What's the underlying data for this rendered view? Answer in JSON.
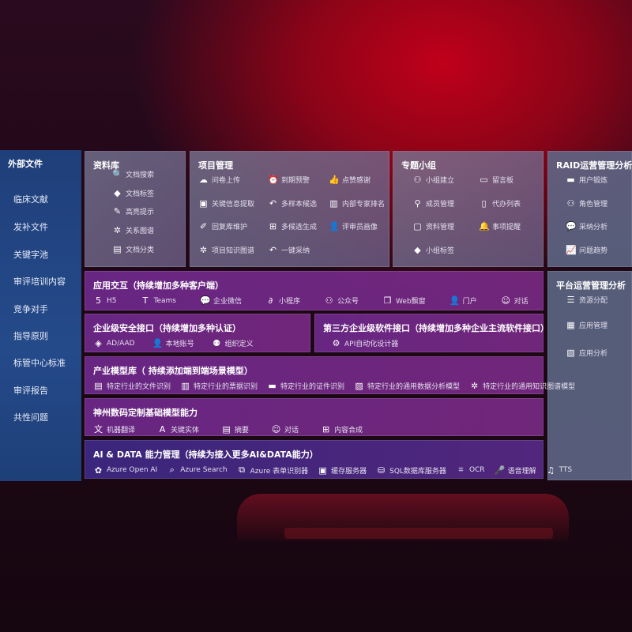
{
  "sidebar": {
    "title": "外部文件",
    "items": [
      "临床文献",
      "发补文件",
      "关键字池",
      "审评培训内容",
      "竞争对手",
      "指导原则",
      "标管中心标准",
      "审评报告",
      "共性问题"
    ]
  },
  "panels": {
    "library": {
      "title": "资料库",
      "items": [
        {
          "icon": "doc-search-icon",
          "label": "文档搜索"
        },
        {
          "icon": "tag-icon",
          "label": "文档标签"
        },
        {
          "icon": "pen-icon",
          "label": "高亮提示"
        },
        {
          "icon": "graph-icon",
          "label": "关系图谱"
        },
        {
          "icon": "doc-category-icon",
          "label": "文档分类"
        }
      ]
    },
    "project": {
      "title": "项目管理",
      "items": [
        {
          "icon": "upload-cloud-icon",
          "label": "问卷上传"
        },
        {
          "icon": "alarm-icon",
          "label": "到期预警"
        },
        {
          "icon": "thumbs-up-icon",
          "label": "点赞感谢"
        },
        {
          "icon": "extract-icon",
          "label": "关键信息提取"
        },
        {
          "icon": "reply-icon",
          "label": "多样本候选"
        },
        {
          "icon": "ranking-icon",
          "label": "内部专家排名"
        },
        {
          "icon": "edit-icon",
          "label": "回复库维护"
        },
        {
          "icon": "puzzle-icon",
          "label": "多候选生成"
        },
        {
          "icon": "user-icon",
          "label": "评审员画像"
        },
        {
          "icon": "graph-icon",
          "label": "项目知识图谱"
        },
        {
          "icon": "reply-icon",
          "label": "一键采纳"
        }
      ]
    },
    "group": {
      "title": "专题小组",
      "items": [
        {
          "icon": "group-icon",
          "label": "小组建立"
        },
        {
          "icon": "bbs-icon",
          "label": "留言板"
        },
        {
          "icon": "add-user-icon",
          "label": "成员管理"
        },
        {
          "icon": "clipboard-icon",
          "label": "代办列表"
        },
        {
          "icon": "folder-icon",
          "label": "资料管理"
        },
        {
          "icon": "bell-icon",
          "label": "事项提醒"
        },
        {
          "icon": "tag-icon",
          "label": "小组标签"
        }
      ]
    },
    "raid": {
      "title": "RAID运营管理分析",
      "items": [
        {
          "icon": "id-card-icon",
          "label": "用户锻炼"
        },
        {
          "icon": "users-icon",
          "label": "角色管理"
        },
        {
          "icon": "qa-icon",
          "label": "采纳分析"
        },
        {
          "icon": "trend-icon",
          "label": "问题趋势"
        }
      ]
    },
    "platform": {
      "title": "平台运营管理分析",
      "items": [
        {
          "icon": "list-icon",
          "label": "资源分配"
        },
        {
          "icon": "apps-icon",
          "label": "应用管理"
        },
        {
          "icon": "chart-icon",
          "label": "应用分析"
        }
      ]
    },
    "interaction": {
      "title": "应用交互（持续增加多种客户端）",
      "items": [
        {
          "icon": "html5-icon",
          "label": "H5"
        },
        {
          "icon": "teams-icon",
          "label": "Teams"
        },
        {
          "icon": "wechat-work-icon",
          "label": "企业微信"
        },
        {
          "icon": "miniprogram-icon",
          "label": "小程序"
        },
        {
          "icon": "official-account-icon",
          "label": "公众号"
        },
        {
          "icon": "window-icon",
          "label": "Web飘窗"
        },
        {
          "icon": "portal-icon",
          "label": "门户"
        },
        {
          "icon": "chat-icon",
          "label": "对话"
        }
      ]
    },
    "security": {
      "title": "企业级安全接口（持续增加多种认证）",
      "items": [
        {
          "icon": "ad-icon",
          "label": "AD/AAD"
        },
        {
          "icon": "account-icon",
          "label": "本地账号"
        },
        {
          "icon": "org-icon",
          "label": "组织定义"
        }
      ]
    },
    "thirdparty": {
      "title": "第三方企业级软件接口（持续增加多种企业主流软件接口）",
      "items": [
        {
          "icon": "gear-icon",
          "label": "API自动化设计器"
        }
      ]
    },
    "industry": {
      "title": "产业模型库（ 持续添加端到端场景模型）",
      "items": [
        {
          "icon": "file-icon",
          "label": "特定行业的文件识别"
        },
        {
          "icon": "receipt-icon",
          "label": "特定行业的票据识别"
        },
        {
          "icon": "id-card-icon",
          "label": "特定行业的证件识别"
        },
        {
          "icon": "analytics-icon",
          "label": "特定行业的通用数据分析模型"
        },
        {
          "icon": "graph-icon",
          "label": "特定行业的通用知识图谱模型"
        }
      ]
    },
    "base": {
      "title": "神州数码定制基础模型能力",
      "items": [
        {
          "icon": "translate-icon",
          "label": "机器翻译"
        },
        {
          "icon": "entity-icon",
          "label": "关键实体"
        },
        {
          "icon": "summary-icon",
          "label": "摘要"
        },
        {
          "icon": "chat-icon",
          "label": "对话"
        },
        {
          "icon": "compose-icon",
          "label": "内容合成"
        }
      ]
    },
    "aidata": {
      "title": "AI & DATA 能力管理（持续为接入更多AI&DATA能力）",
      "items": [
        {
          "icon": "openai-icon",
          "label": "Azure Open AI"
        },
        {
          "icon": "search-icon",
          "label": "Azure Search"
        },
        {
          "icon": "form-icon",
          "label": "Azure 表单识别器"
        },
        {
          "icon": "cache-icon",
          "label": "缓存服务器"
        },
        {
          "icon": "database-icon",
          "label": "SQL数据库服务器"
        },
        {
          "icon": "ocr-icon",
          "label": "OCR"
        },
        {
          "icon": "speech-icon",
          "label": "语音理解"
        },
        {
          "icon": "tts-icon",
          "label": "TTS"
        }
      ]
    }
  }
}
